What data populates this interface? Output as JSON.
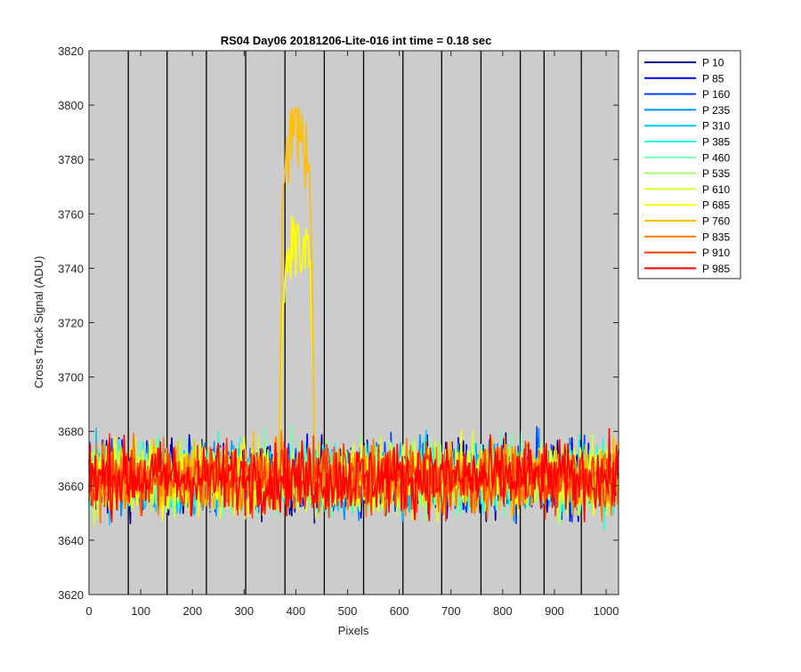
{
  "chart_data": {
    "type": "line",
    "title": "RS04 Day06 20181206-Lite-016 int time = 0.18 sec",
    "xlabel": "Pixels",
    "ylabel": "Cross Track Signal (ADU)",
    "xlim": [
      0,
      1024
    ],
    "ylim": [
      3620,
      3820
    ],
    "xticks": [
      0,
      100,
      200,
      300,
      400,
      500,
      600,
      700,
      800,
      900,
      1000
    ],
    "yticks": [
      3620,
      3640,
      3660,
      3680,
      3700,
      3720,
      3740,
      3760,
      3780,
      3800,
      3820
    ],
    "background": "#cccccc",
    "grid": false,
    "vertical_dividers": [
      76,
      151,
      227,
      303,
      379,
      455,
      531,
      607,
      682,
      758,
      834,
      880,
      952
    ],
    "legend_position": "outside-right",
    "noise_baseline": 3663,
    "noise_range": [
      3634,
      3689
    ],
    "series": [
      {
        "name": "P 10",
        "color": "#00008f"
      },
      {
        "name": "P 85",
        "color": "#0000e8"
      },
      {
        "name": "P 160",
        "color": "#0040ff"
      },
      {
        "name": "P 235",
        "color": "#0090ff"
      },
      {
        "name": "P 310",
        "color": "#00c8ff"
      },
      {
        "name": "P 385",
        "color": "#20ffe0"
      },
      {
        "name": "P 460",
        "color": "#70ffb0"
      },
      {
        "name": "P 535",
        "color": "#a0ff70"
      },
      {
        "name": "P 610",
        "color": "#d8ff30"
      },
      {
        "name": "P 685",
        "color": "#ffff00"
      },
      {
        "name": "P 760",
        "color": "#ffbf00"
      },
      {
        "name": "P 835",
        "color": "#ff7a00"
      },
      {
        "name": "P 910",
        "color": "#ff3a00"
      },
      {
        "name": "P 985",
        "color": "#ff0000"
      }
    ],
    "peak": {
      "x_range": [
        368,
        436
      ],
      "series_peaks": {
        "P 685": 3762,
        "P 760": 3804
      }
    }
  }
}
